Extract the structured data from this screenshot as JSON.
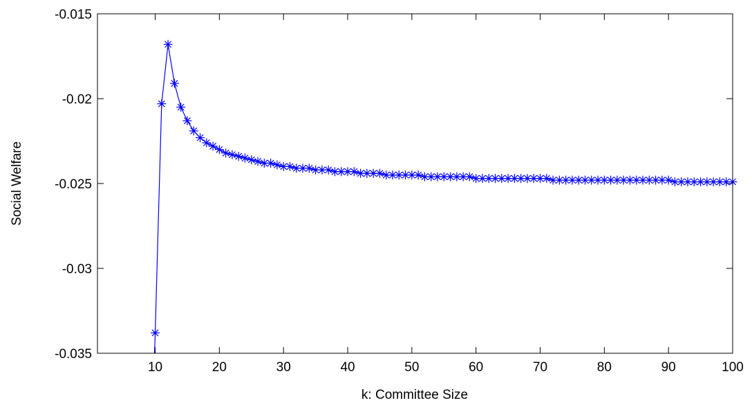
{
  "chart_data": {
    "type": "line",
    "title": "",
    "xlabel": "k: Committee Size",
    "ylabel": "Social Welfare",
    "xlim": [
      1,
      100
    ],
    "ylim": [
      -0.035,
      -0.015
    ],
    "xticks": [
      10,
      20,
      30,
      40,
      50,
      60,
      70,
      80,
      90,
      100
    ],
    "xtick_labels": [
      "10",
      "20",
      "30",
      "40",
      "50",
      "60",
      "70",
      "80",
      "90",
      "100"
    ],
    "yticks": [
      -0.035,
      -0.03,
      -0.025,
      -0.02,
      -0.015
    ],
    "ytick_labels": [
      "-0.035",
      "-0.03",
      "-0.025",
      "-0.02",
      "-0.015"
    ],
    "grid": false,
    "series": [
      {
        "color": "#0000ff",
        "marker": "asterisk",
        "x": [
          10,
          11,
          12,
          13,
          14,
          15,
          16,
          17,
          18,
          19,
          20,
          21,
          22,
          23,
          24,
          25,
          26,
          27,
          28,
          29,
          30,
          31,
          32,
          33,
          34,
          35,
          36,
          37,
          38,
          39,
          40,
          41,
          42,
          43,
          44,
          45,
          46,
          47,
          48,
          49,
          50,
          51,
          52,
          53,
          54,
          55,
          56,
          57,
          58,
          59,
          60,
          61,
          62,
          63,
          64,
          65,
          66,
          67,
          68,
          69,
          70,
          71,
          72,
          73,
          74,
          75,
          76,
          77,
          78,
          79,
          80,
          81,
          82,
          83,
          84,
          85,
          86,
          87,
          88,
          89,
          90,
          91,
          92,
          93,
          94,
          95,
          96,
          97,
          98,
          99,
          100
        ],
        "y": [
          -0.0338,
          -0.0203,
          -0.0168,
          -0.0191,
          -0.0205,
          -0.0213,
          -0.0219,
          -0.0223,
          -0.0226,
          -0.0228,
          -0.023,
          -0.0232,
          -0.0233,
          -0.0234,
          -0.0235,
          -0.0236,
          -0.0237,
          -0.0238,
          -0.0238,
          -0.0239,
          -0.024,
          -0.024,
          -0.0241,
          -0.0241,
          -0.0241,
          -0.0242,
          -0.0242,
          -0.0242,
          -0.0243,
          -0.0243,
          -0.0243,
          -0.0243,
          -0.0244,
          -0.0244,
          -0.0244,
          -0.0244,
          -0.0245,
          -0.0245,
          -0.0245,
          -0.0245,
          -0.0245,
          -0.0245,
          -0.0246,
          -0.0246,
          -0.0246,
          -0.0246,
          -0.0246,
          -0.0246,
          -0.0246,
          -0.0246,
          -0.0247,
          -0.0247,
          -0.0247,
          -0.0247,
          -0.0247,
          -0.0247,
          -0.0247,
          -0.0247,
          -0.0247,
          -0.0247,
          -0.0247,
          -0.0247,
          -0.0248,
          -0.0248,
          -0.0248,
          -0.0248,
          -0.0248,
          -0.0248,
          -0.0248,
          -0.0248,
          -0.0248,
          -0.0248,
          -0.0248,
          -0.0248,
          -0.0248,
          -0.0248,
          -0.0248,
          -0.0248,
          -0.0248,
          -0.0248,
          -0.0248,
          -0.0249,
          -0.0249,
          -0.0249,
          -0.0249,
          -0.0249,
          -0.0249,
          -0.0249,
          -0.0249,
          -0.0249,
          -0.0249
        ]
      }
    ]
  }
}
